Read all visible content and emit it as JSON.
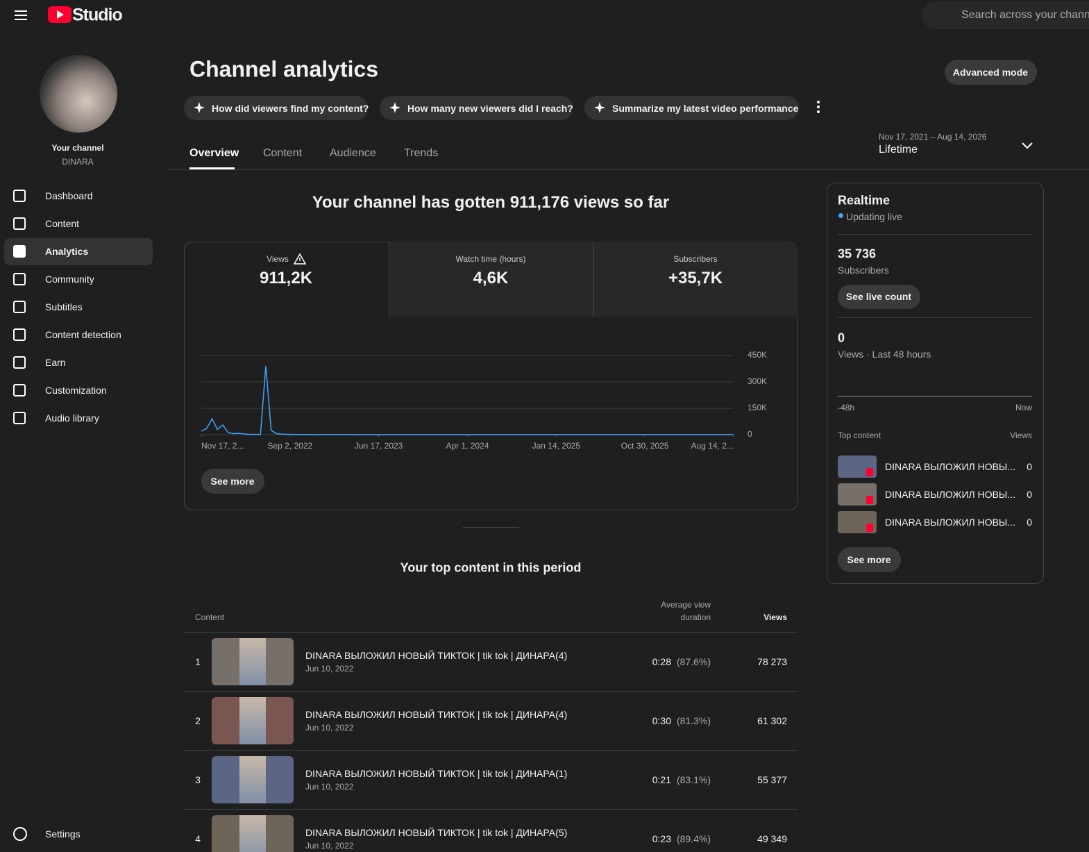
{
  "header": {
    "logo": "Studio",
    "search_placeholder": "Search across your channel"
  },
  "sidebar": {
    "channel_label": "Your channel",
    "channel_name": "DINARA",
    "nav": [
      "Dashboard",
      "Content",
      "Analytics",
      "Community",
      "Subtitles",
      "Content detection",
      "Earn",
      "Customization",
      "Audio library"
    ],
    "settings": "Settings"
  },
  "page": {
    "title": "Channel analytics",
    "advanced_mode": "Advanced mode",
    "suggestions": [
      "How did viewers find my content?",
      "How many new viewers did I reach?",
      "Summarize my latest video performance"
    ],
    "tabs": [
      "Overview",
      "Content",
      "Audience",
      "Trends"
    ],
    "date_range": "Nov 17, 2021 – Aug 14, 2026",
    "period": "Lifetime"
  },
  "overview": {
    "headline": "Your channel has gotten 911,176 views so far",
    "metrics": [
      {
        "label": "Views",
        "value": "911,2K"
      },
      {
        "label": "Watch time (hours)",
        "value": "4,6K"
      },
      {
        "label": "Subscribers",
        "value": "+35,7K"
      }
    ],
    "chart": {
      "type": "line",
      "color": "#3ea6ff",
      "grid": true,
      "values": [
        20000,
        35000,
        90000,
        30000,
        55000,
        12000,
        6000,
        8000,
        4000,
        2000,
        1500,
        1000,
        390000,
        25000,
        6000,
        3000,
        2000,
        1500,
        1200,
        1000,
        800,
        700,
        600,
        500,
        500,
        400,
        400,
        300,
        300,
        300,
        200,
        200,
        200,
        200,
        150,
        150,
        150,
        100,
        100,
        100,
        100,
        100,
        100,
        100,
        100,
        100,
        100,
        100,
        100,
        100,
        50,
        50,
        50,
        50,
        50,
        50,
        50,
        50,
        50,
        50,
        50,
        50,
        50,
        50,
        50,
        50,
        50,
        50,
        50,
        50,
        50,
        50,
        50,
        50,
        50,
        50,
        50,
        50,
        50,
        50,
        50,
        50,
        50,
        50,
        50,
        50,
        50,
        50,
        50,
        50,
        50,
        50,
        50,
        50,
        50,
        50,
        50,
        50,
        50,
        50
      ],
      "xlim": [
        0,
        99
      ],
      "xticks": [
        {
          "value": 0,
          "label": "Nov 17, 2..."
        },
        {
          "value": 16.5,
          "label": "Sep 2, 2022"
        },
        {
          "value": 33,
          "label": "Jun 17, 2023"
        },
        {
          "value": 49.5,
          "label": "Apr 1, 2024"
        },
        {
          "value": 66,
          "label": "Jan 14, 2025"
        },
        {
          "value": 82.5,
          "label": "Oct 30, 2025"
        },
        {
          "value": 99,
          "label": "Aug 14, 2..."
        }
      ],
      "ylim": [
        0,
        450000
      ],
      "yticks": [
        0,
        {
          "value": 150000,
          "label": "150K"
        },
        {
          "value": 300000,
          "label": "300K"
        },
        {
          "value": 450000,
          "label": "450K"
        }
      ]
    },
    "see_more": "See more"
  },
  "top_content": {
    "title": "Your top content in this period",
    "columns": [
      "Content",
      "Average view duration",
      "Views"
    ],
    "rows": [
      {
        "rank": 1,
        "title": "DINARA ВЫЛОЖИЛ НОВЫЙ ТИКТОК | tik tok | ДИНАРА(4)",
        "date": "Jun 10, 2022",
        "duration": "0:28",
        "percent": "(87.6%)",
        "views": "78 273"
      },
      {
        "rank": 2,
        "title": "DINARA ВЫЛОЖИЛ НОВЫЙ ТИКТОК | tik tok | ДИНАРА(4)",
        "date": "Jun 10, 2022",
        "duration": "0:30",
        "percent": "(81.3%)",
        "views": "61 302"
      },
      {
        "rank": 3,
        "title": "DINARA ВЫЛОЖИЛ НОВЫЙ ТИКТОК | tik tok | ДИНАРА(1)",
        "date": "Jun 10, 2022",
        "duration": "0:21",
        "percent": "(83.1%)",
        "views": "55 377"
      },
      {
        "rank": 4,
        "title": "DINARA ВЫЛОЖИЛ НОВЫЙ ТИКТОК | tik tok | ДИНАРА(5)",
        "date": "Jun 10, 2022",
        "duration": "0:23",
        "percent": "(89.4%)",
        "views": "49 349"
      }
    ]
  },
  "realtime": {
    "title": "Realtime",
    "status": "Updating live",
    "subscribers": "35 736",
    "subscribers_label": "Subscribers",
    "see_live_count": "See live count",
    "views": 0,
    "views_label": "Views · Last 48 hours",
    "axis_start": "-48h",
    "axis_end": "Now",
    "top_content_label": "Top content",
    "views_column": "Views",
    "items": [
      {
        "title": "DINARA ВЫЛОЖИЛ НОВЫ...",
        "views": 0
      },
      {
        "title": "DINARA ВЫЛОЖИЛ НОВЫ...",
        "views": 0
      },
      {
        "title": "DINARA ВЫЛОЖИЛ НОВЫ...",
        "views": 0
      }
    ],
    "see_more": "See more"
  }
}
